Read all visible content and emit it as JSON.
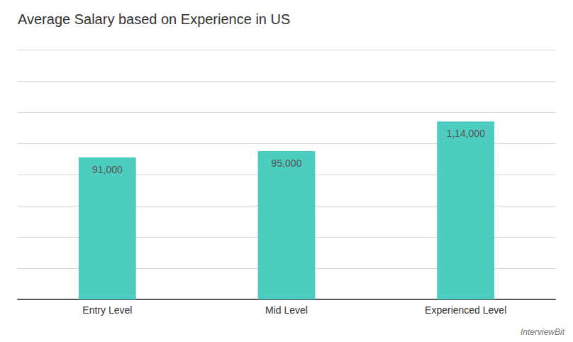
{
  "chart_data": {
    "type": "bar",
    "title": "Average Salary based on Experience in US",
    "categories": [
      "Entry Level",
      "Mid Level",
      "Experienced Level"
    ],
    "values": [
      91000,
      95000,
      114000
    ],
    "value_labels": [
      "91,000",
      "95,000",
      "1,14,000"
    ],
    "data_labels": true,
    "color": "#4DCDC0",
    "ylim": [
      0,
      160000
    ],
    "yticks": [
      0,
      20000,
      40000,
      60000,
      80000,
      100000,
      120000,
      140000,
      160000
    ],
    "grid": true,
    "tick_labels": "x",
    "annotations": [
      "InterviewBit"
    ]
  }
}
